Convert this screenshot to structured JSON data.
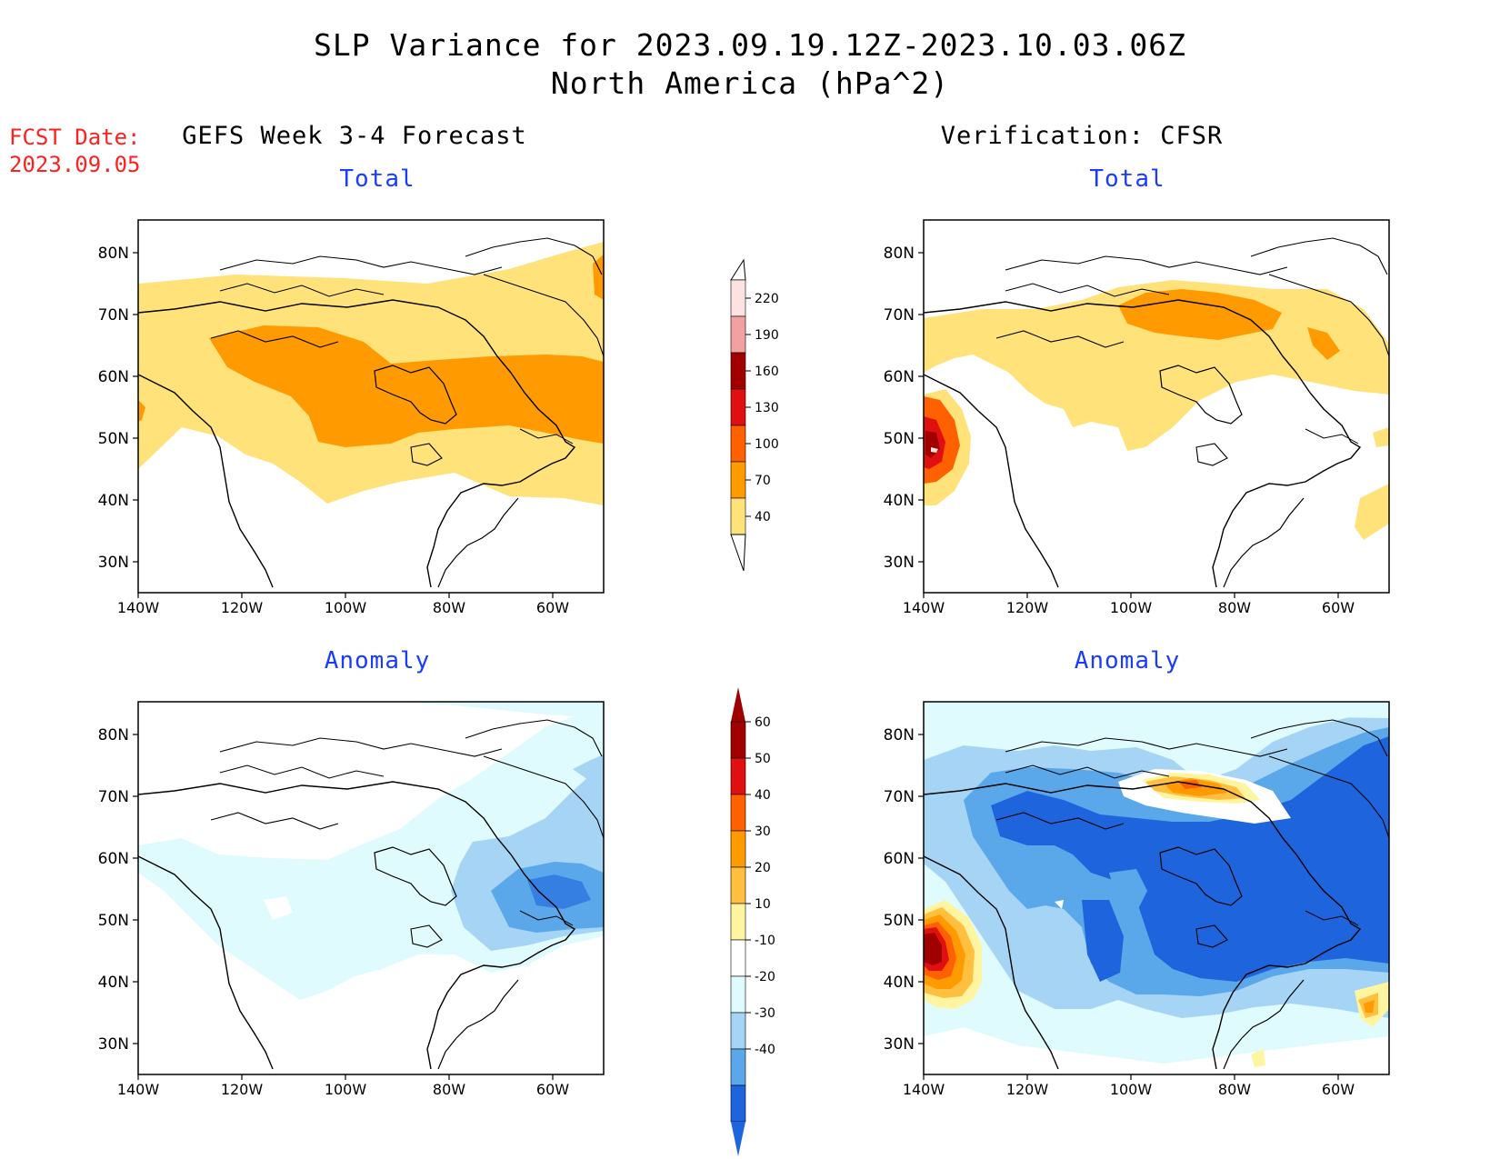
{
  "title_line1": "SLP Variance for 2023.09.19.12Z-2023.10.03.06Z",
  "title_line2": "North America (hPa^2)",
  "fcst_label": "FCST Date:",
  "fcst_date": "2023.09.05",
  "left_column_title": "GEFS Week 3-4 Forecast",
  "right_column_title": "Verification: CFSR",
  "panels": {
    "total_label": "Total",
    "anomaly_label": "Anomaly"
  },
  "axes": {
    "lat_ticks": [
      "80N",
      "70N",
      "60N",
      "50N",
      "40N",
      "30N"
    ],
    "lon_ticks": [
      "140W",
      "120W",
      "100W",
      "80W",
      "60W"
    ]
  },
  "total_colorbar": {
    "levels": [
      "220",
      "190",
      "160",
      "130",
      "100",
      "70",
      "40"
    ],
    "colors": [
      "#fde2e2",
      "#f3a0a0",
      "#a00000",
      "#e01010",
      "#ff6000",
      "#ff9b00",
      "#ffe27a"
    ]
  },
  "anomaly_colorbar": {
    "levels": [
      "60",
      "50",
      "40",
      "30",
      "20",
      "10",
      "-10",
      "-20",
      "-30",
      "-40"
    ],
    "colors": [
      "#a00000",
      "#e01010",
      "#ff6000",
      "#ff9b00",
      "#ffc040",
      "#fff5a0",
      "#ffffff",
      "#e0fbfd",
      "#a5d4f5",
      "#5aa8ea",
      "#1e64dc"
    ]
  },
  "colors": {
    "title_red": "#ff2020",
    "subtitle_blue": "#1a3cff"
  }
}
